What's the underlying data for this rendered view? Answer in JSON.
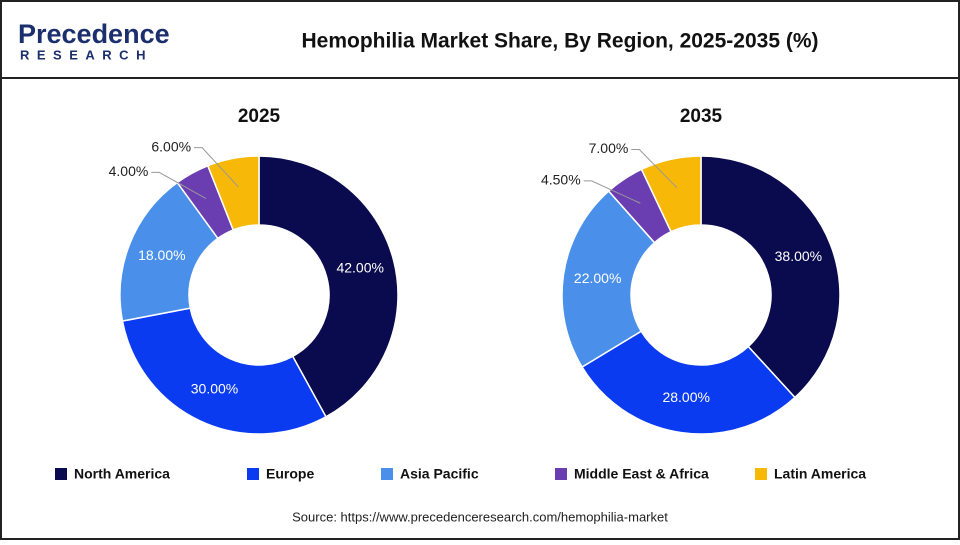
{
  "header": {
    "logo": "Precedence",
    "logo_sub": "RESEARCH",
    "title": "Hemophilia Market Share, By Region, 2025-2035 (%)"
  },
  "chart_data": [
    {
      "type": "donut",
      "title": "2025",
      "categories": [
        "North America",
        "Europe",
        "Asia Pacific",
        "Middle East & Africa",
        "Latin America"
      ],
      "values": [
        42,
        30,
        18,
        4,
        6
      ],
      "value_labels": [
        "42.00%",
        "30.00%",
        "18.00%",
        "4.00%",
        "6.00%"
      ],
      "colors": [
        "#0a0a4e",
        "#0b3bf0",
        "#4a90ea",
        "#6a3db0",
        "#f7b808"
      ]
    },
    {
      "type": "donut",
      "title": "2035",
      "categories": [
        "North America",
        "Europe",
        "Asia Pacific",
        "Middle East & Africa",
        "Latin America"
      ],
      "values": [
        38,
        28,
        22,
        4.5,
        7
      ],
      "value_labels": [
        "38.00%",
        "28.00%",
        "22.00%",
        "4.50%",
        "7.00%"
      ],
      "colors": [
        "#0a0a4e",
        "#0b3bf0",
        "#4a90ea",
        "#6a3db0",
        "#f7b808"
      ]
    }
  ],
  "source": "Source: https://www.precedenceresearch.com/hemophilia-market"
}
